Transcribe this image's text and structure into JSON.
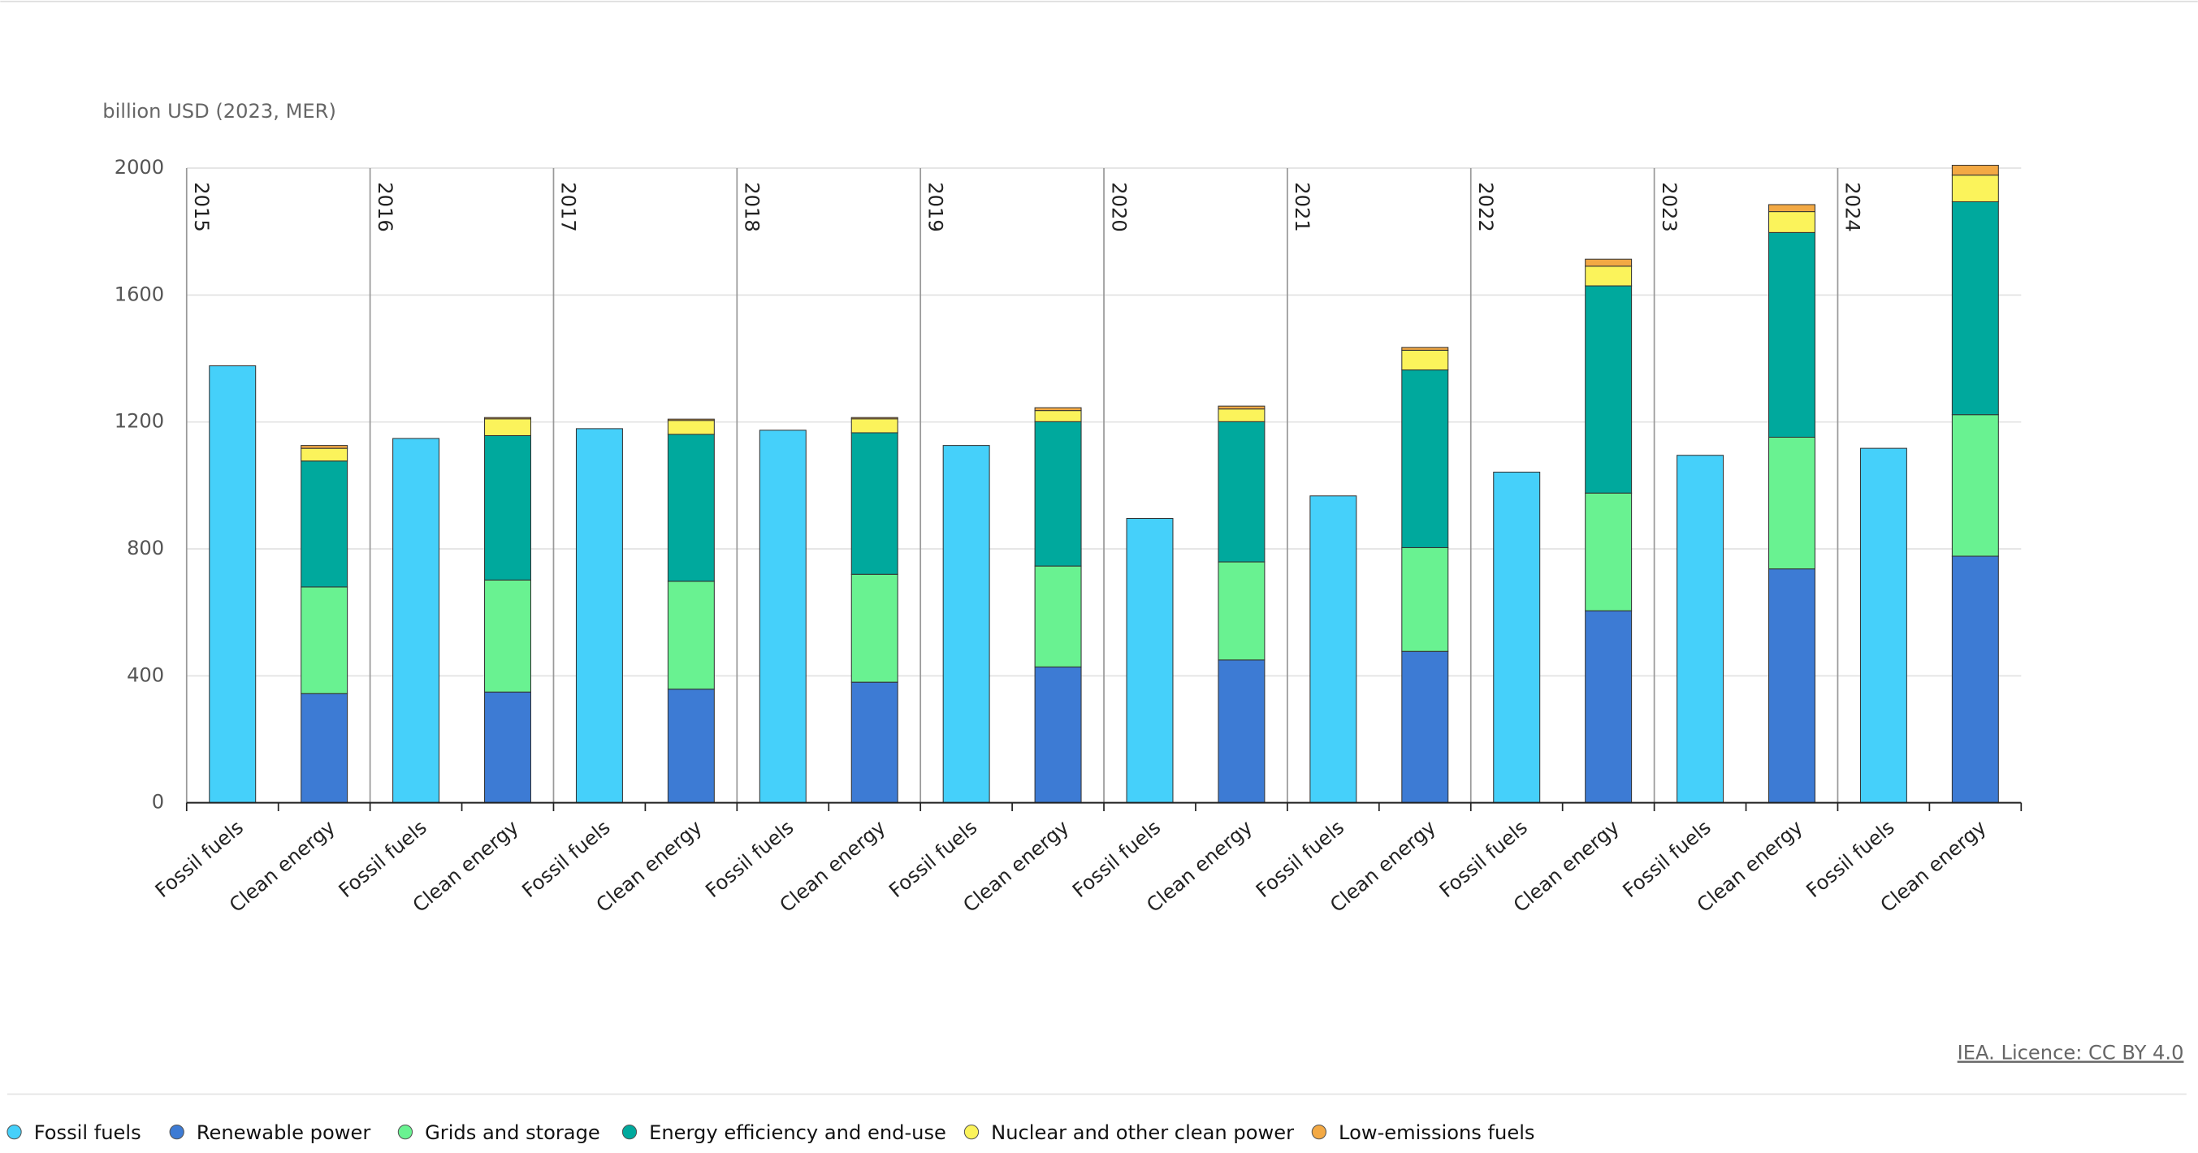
{
  "chart_data": {
    "type": "stacked_bar",
    "y_axis_label": "billion USD (2023, MER)",
    "source": "IEA. Licence: CC BY 4.0",
    "groups": [
      "2015",
      "2016",
      "2017",
      "2018",
      "2019",
      "2020",
      "2021",
      "2022",
      "2023",
      "2024"
    ],
    "categories": [
      "Fossil fuels",
      "Clean energy",
      "Fossil fuels",
      "Clean energy",
      "Fossil fuels",
      "Clean energy",
      "Fossil fuels",
      "Clean energy",
      "Fossil fuels",
      "Clean energy",
      "Fossil fuels",
      "Clean energy",
      "Fossil fuels",
      "Clean energy",
      "Fossil fuels",
      "Clean energy",
      "Fossil fuels",
      "Clean energy",
      "Fossil fuels",
      "Clean energy"
    ],
    "series": [
      {
        "name": "Fossil fuels",
        "color": "#45d0fa",
        "values": [
          1377,
          null,
          1148,
          null,
          1179,
          null,
          1174,
          null,
          1126,
          null,
          896,
          null,
          967,
          null,
          1042,
          null,
          1095,
          null,
          1117,
          null
        ]
      },
      {
        "name": "Renewable power",
        "color": "#3d7bd4",
        "values": [
          null,
          344,
          null,
          349,
          null,
          358,
          null,
          380,
          null,
          428,
          null,
          450,
          null,
          477,
          null,
          605,
          null,
          737,
          null,
          777
        ]
      },
      {
        "name": "Grids and storage",
        "color": "#69f291",
        "values": [
          null,
          336,
          null,
          353,
          null,
          340,
          null,
          340,
          null,
          318,
          null,
          309,
          null,
          327,
          null,
          371,
          null,
          415,
          null,
          446
        ]
      },
      {
        "name": "Energy efficiency and end-use",
        "color": "#00a99d",
        "values": [
          null,
          397,
          null,
          455,
          null,
          463,
          null,
          446,
          null,
          455,
          null,
          442,
          null,
          560,
          null,
          653,
          null,
          645,
          null,
          671
        ]
      },
      {
        "name": "Nuclear and other clean power",
        "color": "#fbf35b",
        "values": [
          null,
          40,
          null,
          53,
          null,
          44,
          null,
          44,
          null,
          35,
          null,
          40,
          null,
          62,
          null,
          62,
          null,
          66,
          null,
          84
        ]
      },
      {
        "name": "Low-emissions fuels",
        "color": "#f3a944",
        "values": [
          null,
          9,
          null,
          4,
          null,
          4,
          null,
          4,
          null,
          9,
          null,
          9,
          null,
          9,
          null,
          22,
          null,
          22,
          null,
          31
        ]
      }
    ],
    "ylim": [
      0,
      2000
    ],
    "yticks": [
      0,
      400,
      800,
      1200,
      1600,
      2000
    ],
    "grid": true,
    "legend": "bottom"
  }
}
